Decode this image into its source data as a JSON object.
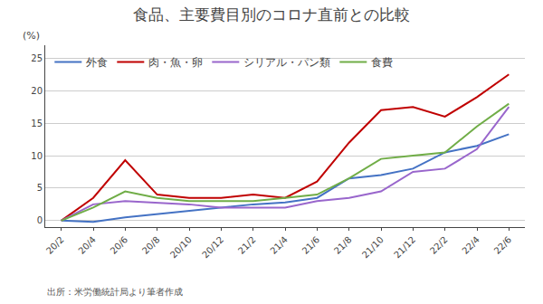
{
  "chart_data": {
    "type": "line",
    "title": "食品、主要費目別のコロナ直前との比較",
    "ylabel": "(%)",
    "annotations": [
      "出所：米労働統計局より筆者作成"
    ],
    "categories": [
      "20/2",
      "20/4",
      "20/6",
      "20/8",
      "20/10",
      "20/12",
      "21/2",
      "21/4",
      "21/6",
      "21/8",
      "21/10",
      "21/12",
      "22/2",
      "22/4",
      "22/6"
    ],
    "series": [
      {
        "name": "外食",
        "color": "#4472C4",
        "values": [
          0.0,
          -0.2,
          0.5,
          1.0,
          1.5,
          2.0,
          2.5,
          2.8,
          3.5,
          6.5,
          7.0,
          8.0,
          10.5,
          11.5,
          13.3
        ]
      },
      {
        "name": "肉・魚・卵",
        "color": "#C00000",
        "values": [
          0.0,
          3.5,
          9.3,
          4.0,
          3.5,
          3.5,
          4.0,
          3.5,
          6.0,
          12.0,
          17.0,
          17.5,
          16.0,
          19.0,
          22.5
        ]
      },
      {
        "name": "シリアル・パン類",
        "color": "#9966CC",
        "values": [
          0.0,
          2.5,
          3.0,
          2.8,
          2.5,
          2.0,
          2.0,
          2.0,
          3.0,
          3.5,
          4.5,
          7.5,
          8.0,
          11.0,
          17.5
        ]
      },
      {
        "name": "食費",
        "color": "#70AD47",
        "values": [
          0.0,
          2.0,
          4.5,
          3.5,
          3.0,
          3.0,
          3.0,
          3.5,
          4.0,
          6.5,
          9.5,
          10.0,
          10.5,
          14.5,
          18.0
        ]
      }
    ],
    "ylim": [
      -1,
      27
    ],
    "yticks": [
      0,
      5,
      10,
      15,
      20,
      25
    ],
    "grid": true,
    "legend": "upper left"
  }
}
